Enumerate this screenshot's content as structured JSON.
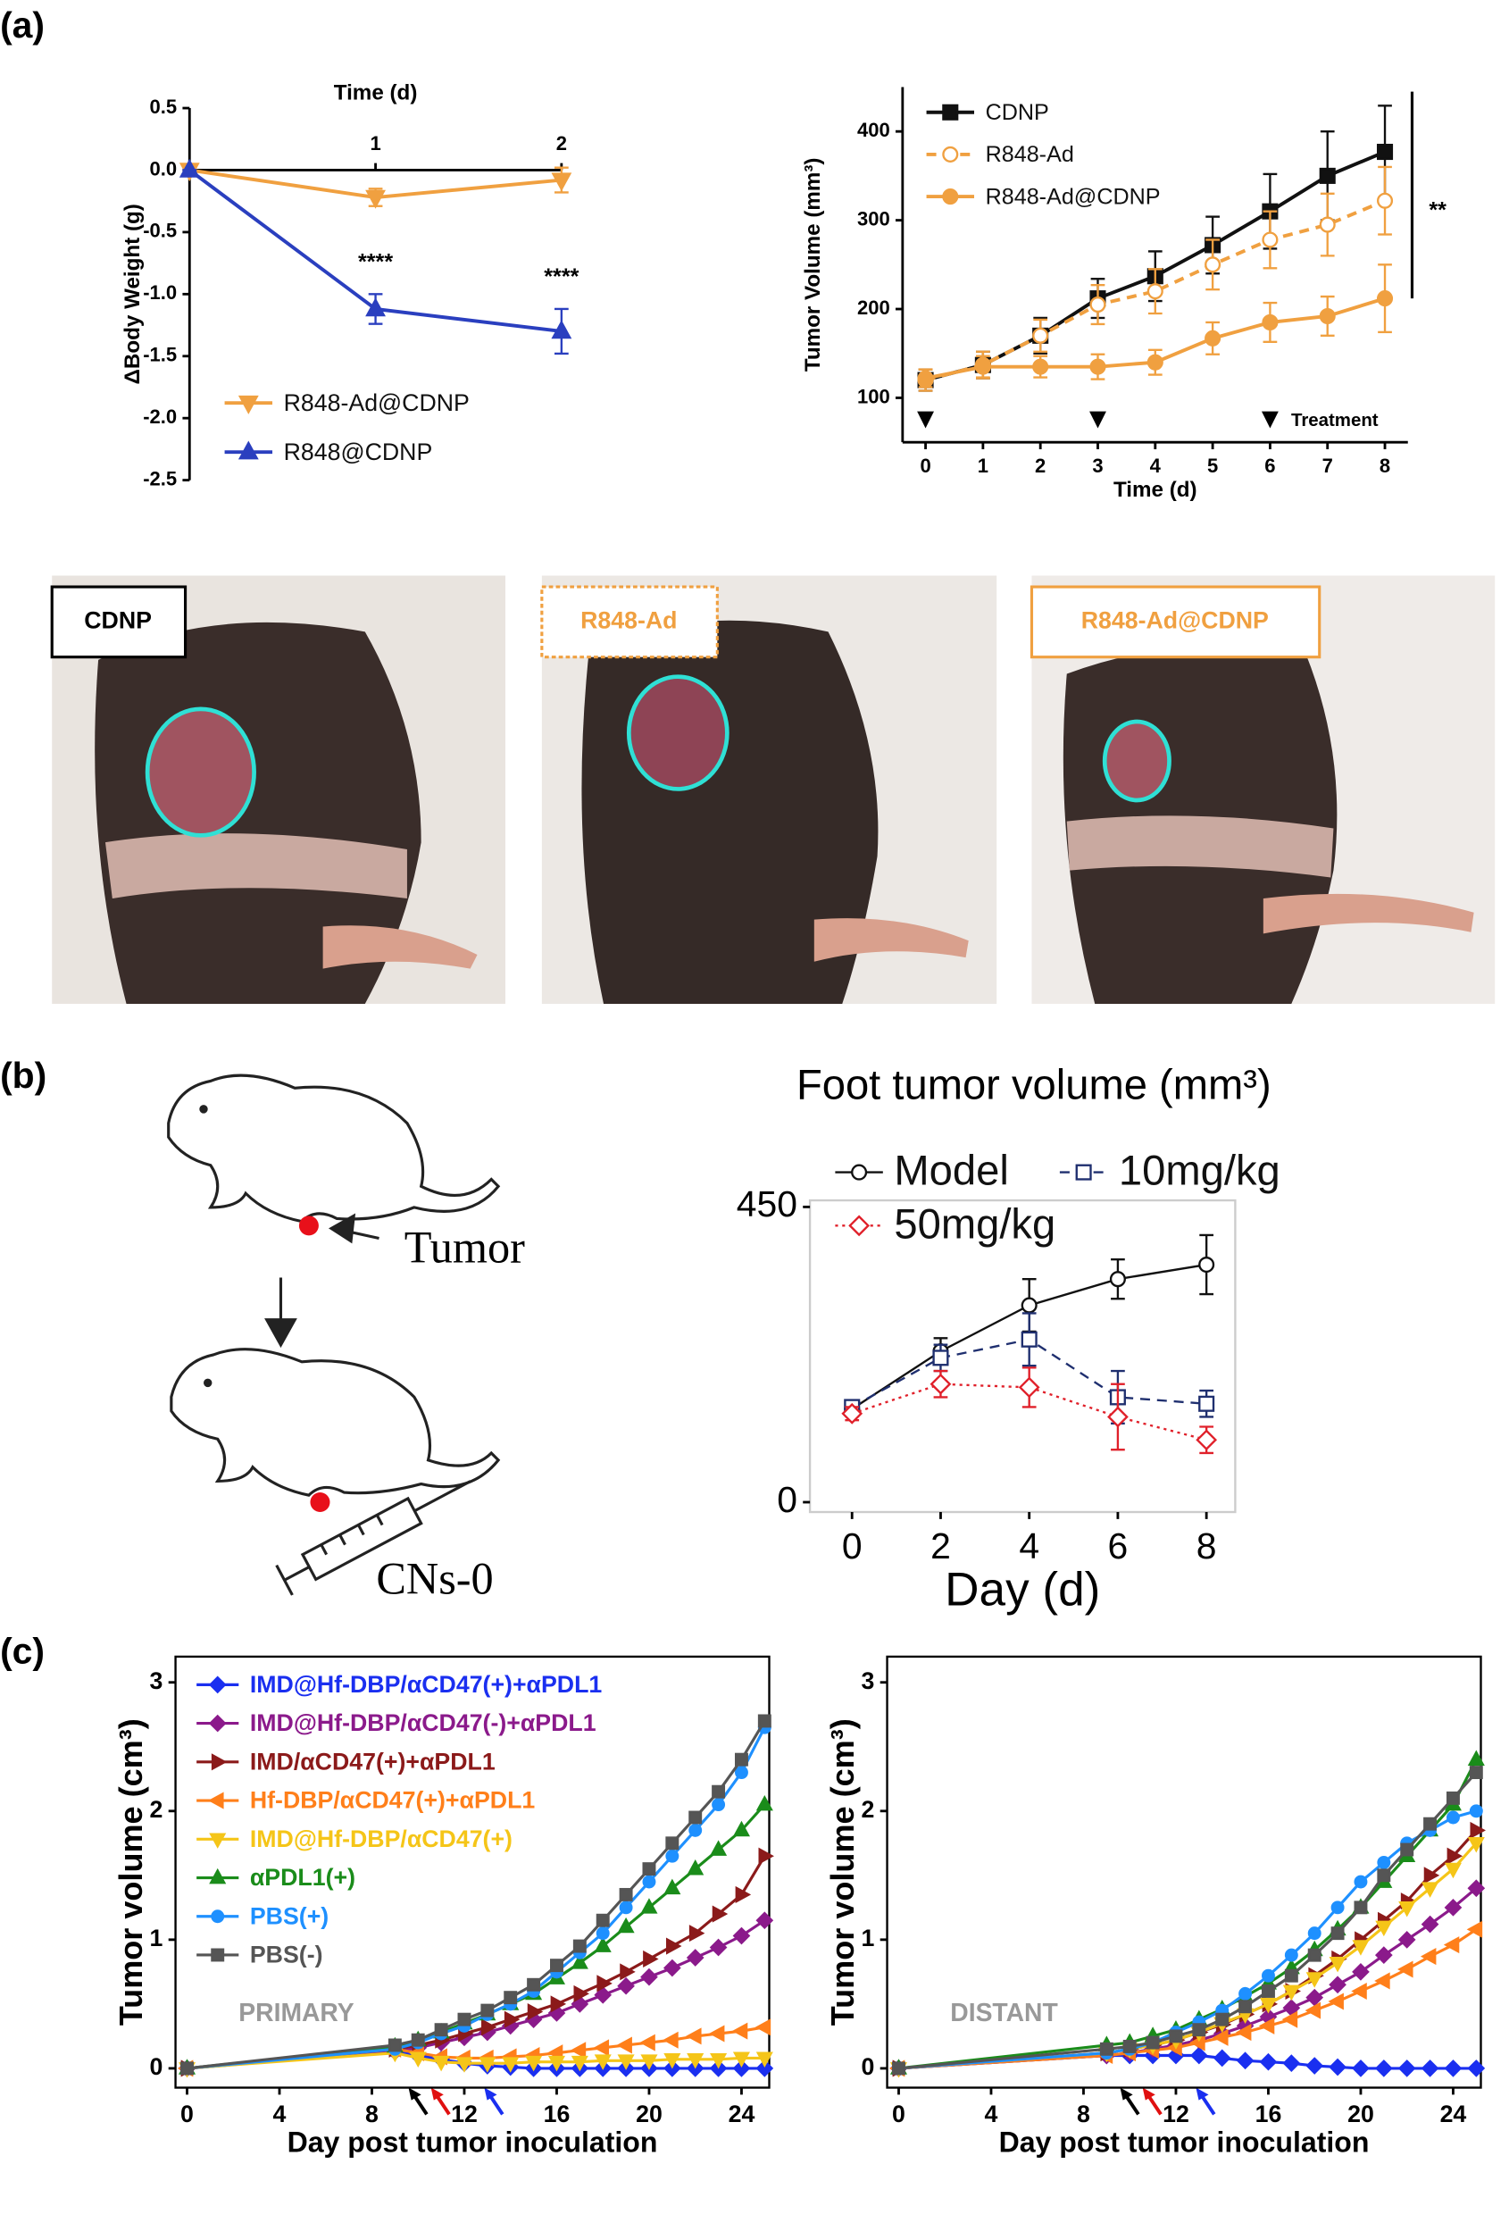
{
  "panels": [
    "(a)",
    "(b)",
    "(c)"
  ],
  "photos": [
    {
      "label": "CDNP"
    },
    {
      "label": "R848-Ad"
    },
    {
      "label": "R848-Ad@CDNP"
    }
  ],
  "diagram": {
    "tumor_label": "Tumor",
    "injection_label": "CNs-0"
  },
  "chart_data": [
    {
      "type": "line",
      "xlabel": "Time (d)",
      "ylabel": "ΔBody Weight (g)",
      "x": [
        0,
        1,
        2
      ],
      "xlim": [
        0,
        2
      ],
      "xticks": [
        1,
        2
      ],
      "ylim": [
        -2.5,
        0.5
      ],
      "yticks": [
        0.5,
        {
          "value": 0,
          "label": "0.0"
        },
        -0.5,
        {
          "value": -1,
          "label": "-1.0"
        },
        -1.5,
        {
          "value": -2,
          "label": "-2.0"
        },
        -2.5
      ],
      "legend": "lower left",
      "series": [
        {
          "name": "R848-Ad@CDNP",
          "color": "#f0a040",
          "marker": "triangle-down",
          "filled": true,
          "dash": "solid",
          "values": [
            0,
            -0.22,
            -0.08
          ],
          "errors": [
            0,
            0.07,
            0.1
          ]
        },
        {
          "name": "R848@CDNP",
          "color": "#2a3fbf",
          "marker": "triangle-up",
          "filled": true,
          "dash": "solid",
          "values": [
            0,
            -1.12,
            -1.3
          ],
          "errors": [
            0,
            0.12,
            0.18
          ]
        }
      ],
      "annotations": [
        "****",
        "****"
      ]
    },
    {
      "type": "line",
      "xlabel": "Time (d)",
      "ylabel": "Tumor Volume (mm³)",
      "x": [
        0,
        1,
        2,
        3,
        4,
        5,
        6,
        7,
        8
      ],
      "xlim": [
        -0.4,
        8.4
      ],
      "xticks": [
        0,
        1,
        2,
        3,
        4,
        5,
        6,
        7,
        8
      ],
      "ylim": [
        50,
        450
      ],
      "yticks": [
        100,
        200,
        300,
        400
      ],
      "legend": "upper left",
      "series": [
        {
          "name": "CDNP",
          "color": "#111111",
          "marker": "square",
          "filled": true,
          "dash": "solid",
          "values": [
            120,
            137,
            170,
            212,
            237,
            272,
            310,
            350,
            377
          ],
          "errors": [
            12,
            15,
            20,
            22,
            28,
            32,
            42,
            50,
            52
          ]
        },
        {
          "name": "R848-Ad",
          "color": "#f0a040",
          "marker": "circle",
          "filled": false,
          "dash": "dashed",
          "values": [
            120,
            137,
            170,
            205,
            220,
            250,
            278,
            295,
            322
          ],
          "errors": [
            12,
            15,
            18,
            22,
            25,
            28,
            32,
            35,
            38
          ]
        },
        {
          "name": "R848-Ad@CDNP",
          "color": "#f0a040",
          "marker": "circle",
          "filled": true,
          "dash": "solid",
          "values": [
            122,
            135,
            135,
            135,
            140,
            167,
            185,
            192,
            212
          ],
          "errors": [
            10,
            12,
            12,
            14,
            14,
            18,
            22,
            22,
            38
          ]
        }
      ],
      "treatment_days": [
        0,
        3,
        6
      ],
      "annotations": [
        "**",
        "Treatment"
      ]
    },
    {
      "type": "line",
      "title": "Foot tumor volume (mm³)",
      "xlabel": "Day (d)",
      "x": [
        0,
        2,
        4,
        6,
        8
      ],
      "xlim": [
        -0.95,
        8.65
      ],
      "xticks": [
        0,
        2,
        4,
        6,
        8
      ],
      "ylim": [
        -15,
        460
      ],
      "yticks": [
        0,
        450
      ],
      "legend": "upper left",
      "series": [
        {
          "name": "Model",
          "color": "#111111",
          "marker": "circle",
          "filled": false,
          "dash": "solid",
          "values": [
            142,
            230,
            300,
            340,
            362
          ],
          "errors": [
            10,
            20,
            40,
            30,
            45
          ]
        },
        {
          "name": "10mg/kg",
          "color": "#1f2f6f",
          "marker": "square",
          "filled": false,
          "dash": "dashed",
          "values": [
            145,
            220,
            248,
            160,
            150
          ],
          "errors": [
            10,
            20,
            40,
            40,
            20
          ]
        },
        {
          "name": "50mg/kg",
          "color": "#e0202a",
          "marker": "diamond",
          "filled": false,
          "dash": "dotted",
          "values": [
            135,
            180,
            175,
            130,
            95
          ],
          "errors": [
            10,
            20,
            30,
            50,
            20
          ]
        }
      ]
    },
    {
      "type": "line",
      "xlabel": "Day post tumor inoculation",
      "ylabel": "Tumor volume (cm³)",
      "x": [
        0,
        9,
        10,
        11,
        12,
        13,
        14,
        15,
        16,
        17,
        18,
        19,
        20,
        21,
        22,
        23,
        24,
        25
      ],
      "xlim": [
        -0.5,
        25.2
      ],
      "xticks": [
        0,
        4,
        8,
        12,
        16,
        20,
        24
      ],
      "ylim": [
        -0.15,
        3.2
      ],
      "yticks": [
        0,
        1,
        2,
        3
      ],
      "legend": "upper left",
      "annotations": [
        "PRIMARY"
      ],
      "series": [
        {
          "name": "IMD@Hf-DBP/αCD47(+)+αPDL1",
          "color": "#1a2ff0",
          "marker": "diamond",
          "filled": true,
          "dash": "solid",
          "values": [
            0,
            0.13,
            0.1,
            0.07,
            0.04,
            0.02,
            0.01,
            0,
            0,
            0,
            0,
            0,
            0,
            0,
            0,
            0,
            0,
            0
          ]
        },
        {
          "name": "IMD@Hf-DBP/αCD47(-)+αPDL1",
          "color": "#8b1a8b",
          "marker": "diamond",
          "filled": true,
          "dash": "solid",
          "values": [
            0,
            0.13,
            0.16,
            0.2,
            0.24,
            0.28,
            0.33,
            0.38,
            0.43,
            0.5,
            0.57,
            0.64,
            0.71,
            0.78,
            0.86,
            0.94,
            1.03,
            1.15
          ]
        },
        {
          "name": "IMD/αCD47(+)+αPDL1",
          "color": "#8b1a1a",
          "marker": "triangle-right",
          "filled": true,
          "dash": "solid",
          "values": [
            0,
            0.15,
            0.18,
            0.22,
            0.27,
            0.32,
            0.38,
            0.44,
            0.5,
            0.58,
            0.66,
            0.75,
            0.85,
            0.95,
            1.05,
            1.2,
            1.35,
            1.65
          ]
        },
        {
          "name": "Hf-DBP/αCD47(+)+αPDL1",
          "color": "#ff7f1a",
          "marker": "triangle-left",
          "filled": true,
          "dash": "solid",
          "values": [
            0,
            0.15,
            0.12,
            0.09,
            0.08,
            0.08,
            0.09,
            0.1,
            0.12,
            0.14,
            0.16,
            0.18,
            0.2,
            0.22,
            0.25,
            0.27,
            0.29,
            0.32
          ]
        },
        {
          "name": "IMD@Hf-DBP/αCD47(+)",
          "color": "#f5c518",
          "marker": "triangle-down",
          "filled": true,
          "dash": "solid",
          "values": [
            0,
            0.12,
            0.08,
            0.05,
            0.04,
            0.04,
            0.04,
            0.05,
            0.05,
            0.05,
            0.06,
            0.06,
            0.06,
            0.07,
            0.07,
            0.07,
            0.08,
            0.08
          ]
        },
        {
          "name": "αPDL1(+)",
          "color": "#1a8c1a",
          "marker": "triangle-up",
          "filled": true,
          "dash": "solid",
          "values": [
            0,
            0.17,
            0.22,
            0.28,
            0.35,
            0.42,
            0.5,
            0.58,
            0.7,
            0.82,
            0.95,
            1.1,
            1.25,
            1.4,
            1.55,
            1.7,
            1.85,
            2.05
          ]
        },
        {
          "name": "PBS(+)",
          "color": "#1e90ff",
          "marker": "circle",
          "filled": true,
          "dash": "solid",
          "values": [
            0,
            0.15,
            0.2,
            0.27,
            0.33,
            0.42,
            0.5,
            0.6,
            0.75,
            0.9,
            1.05,
            1.25,
            1.45,
            1.65,
            1.85,
            2.05,
            2.3,
            2.65
          ]
        },
        {
          "name": "PBS(-)",
          "color": "#555555",
          "marker": "square",
          "filled": true,
          "dash": "solid",
          "values": [
            0,
            0.18,
            0.22,
            0.3,
            0.38,
            0.45,
            0.55,
            0.65,
            0.8,
            0.95,
            1.15,
            1.35,
            1.55,
            1.75,
            1.95,
            2.15,
            2.4,
            2.7
          ]
        }
      ]
    },
    {
      "type": "line",
      "xlabel": "Day post tumor inoculation",
      "ylabel": "Tumor volume (cm³)",
      "x": [
        0,
        9,
        10,
        11,
        12,
        13,
        14,
        15,
        16,
        17,
        18,
        19,
        20,
        21,
        22,
        23,
        24,
        25
      ],
      "xlim": [
        -0.5,
        25.2
      ],
      "xticks": [
        0,
        4,
        8,
        12,
        16,
        20,
        24
      ],
      "ylim": [
        -0.15,
        3.2
      ],
      "yticks": [
        0,
        1,
        2,
        3
      ],
      "annotations": [
        "DISTANT"
      ],
      "series": [
        {
          "color": "#1a2ff0",
          "marker": "diamond",
          "filled": true,
          "dash": "solid",
          "values": [
            0,
            0.1,
            0.1,
            0.1,
            0.1,
            0.1,
            0.08,
            0.06,
            0.05,
            0.04,
            0.02,
            0.01,
            0,
            0,
            0,
            0,
            0,
            0
          ]
        },
        {
          "color": "#8b1a8b",
          "marker": "diamond",
          "filled": true,
          "dash": "solid",
          "values": [
            0,
            0.1,
            0.12,
            0.15,
            0.18,
            0.22,
            0.27,
            0.33,
            0.4,
            0.47,
            0.55,
            0.65,
            0.75,
            0.88,
            1.0,
            1.12,
            1.25,
            1.4
          ]
        },
        {
          "color": "#8b1a1a",
          "marker": "triangle-right",
          "filled": true,
          "dash": "solid",
          "values": [
            0,
            0.12,
            0.15,
            0.18,
            0.22,
            0.28,
            0.34,
            0.42,
            0.5,
            0.6,
            0.72,
            0.85,
            1.0,
            1.15,
            1.3,
            1.5,
            1.65,
            1.85
          ]
        },
        {
          "color": "#ff7f1a",
          "marker": "triangle-left",
          "filled": true,
          "dash": "solid",
          "values": [
            0,
            0.1,
            0.12,
            0.14,
            0.16,
            0.2,
            0.24,
            0.28,
            0.33,
            0.38,
            0.45,
            0.52,
            0.6,
            0.68,
            0.77,
            0.87,
            0.96,
            1.08
          ]
        },
        {
          "color": "#f5c518",
          "marker": "triangle-down",
          "filled": true,
          "dash": "solid",
          "values": [
            0,
            0.12,
            0.15,
            0.18,
            0.22,
            0.28,
            0.35,
            0.42,
            0.5,
            0.6,
            0.7,
            0.82,
            0.95,
            1.1,
            1.25,
            1.4,
            1.55,
            1.75
          ]
        },
        {
          "color": "#1a8c1a",
          "marker": "triangle-up",
          "filled": true,
          "dash": "solid",
          "values": [
            0,
            0.18,
            0.2,
            0.25,
            0.3,
            0.38,
            0.46,
            0.56,
            0.66,
            0.78,
            0.92,
            1.08,
            1.25,
            1.45,
            1.65,
            1.85,
            2.05,
            2.4
          ]
        },
        {
          "color": "#1e90ff",
          "marker": "circle",
          "filled": true,
          "dash": "solid",
          "values": [
            0,
            0.12,
            0.15,
            0.2,
            0.28,
            0.36,
            0.45,
            0.58,
            0.72,
            0.88,
            1.05,
            1.25,
            1.45,
            1.6,
            1.75,
            1.85,
            1.95,
            2.0
          ]
        },
        {
          "color": "#555555",
          "marker": "square",
          "filled": true,
          "dash": "solid",
          "values": [
            0,
            0.15,
            0.17,
            0.2,
            0.25,
            0.3,
            0.38,
            0.48,
            0.6,
            0.72,
            0.88,
            1.05,
            1.25,
            1.5,
            1.7,
            1.9,
            2.1,
            2.3
          ]
        }
      ]
    }
  ]
}
